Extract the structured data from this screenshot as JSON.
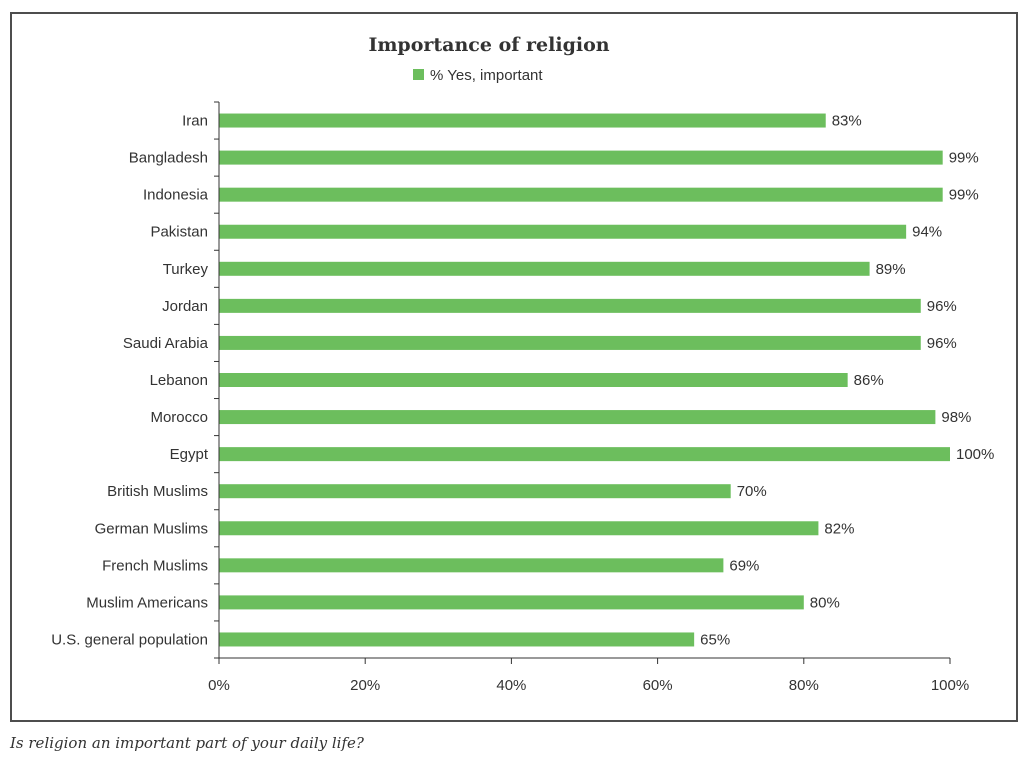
{
  "chart_data": {
    "type": "bar",
    "orientation": "horizontal",
    "title": "Importance of religion",
    "legend": [
      "% Yes, important"
    ],
    "colors": {
      "bar": "#6cbe5d"
    },
    "categories": [
      "Iran",
      "Bangladesh",
      "Indonesia",
      "Pakistan",
      "Turkey",
      "Jordan",
      "Saudi Arabia",
      "Lebanon",
      "Morocco",
      "Egypt",
      "British Muslims",
      "German Muslims",
      "French Muslims",
      "Muslim Americans",
      "U.S. general population"
    ],
    "values": [
      83,
      99,
      99,
      94,
      89,
      96,
      96,
      86,
      98,
      100,
      70,
      82,
      69,
      80,
      65
    ],
    "value_labels": [
      "83%",
      "99%",
      "99%",
      "94%",
      "89%",
      "96%",
      "96%",
      "86%",
      "98%",
      "100%",
      "70%",
      "82%",
      "69%",
      "80%",
      "65%"
    ],
    "xlim": [
      0,
      100
    ],
    "xticks": [
      0,
      20,
      40,
      60,
      80,
      100
    ],
    "xtick_labels": [
      "0%",
      "20%",
      "40%",
      "60%",
      "80%",
      "100%"
    ],
    "legend_placement": "top-center"
  },
  "caption": "Is religion an important part of your daily life?"
}
